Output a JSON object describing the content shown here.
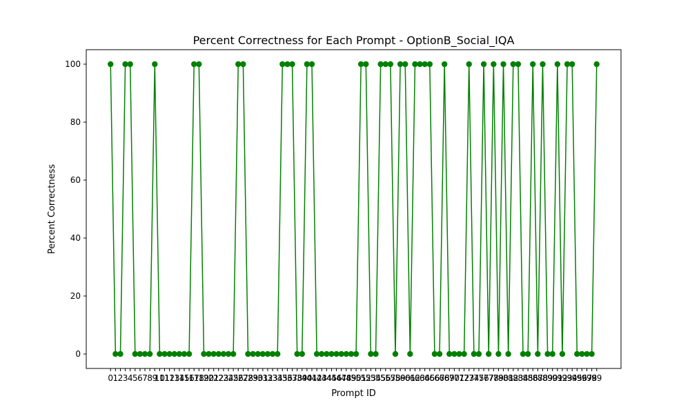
{
  "chart_data": {
    "type": "line",
    "title": "Percent Correctness for Each Prompt - OptionB_Social_IQA",
    "xlabel": "Prompt ID",
    "ylabel": "Percent Correctness",
    "x": [
      0,
      1,
      2,
      3,
      4,
      5,
      6,
      7,
      8,
      9,
      10,
      11,
      12,
      13,
      14,
      15,
      16,
      17,
      18,
      19,
      20,
      21,
      22,
      23,
      24,
      25,
      26,
      27,
      28,
      29,
      30,
      31,
      32,
      33,
      34,
      35,
      36,
      37,
      38,
      39,
      40,
      41,
      42,
      43,
      44,
      45,
      46,
      47,
      48,
      49,
      50,
      51,
      52,
      53,
      54,
      55,
      56,
      57,
      58,
      59,
      60,
      61,
      62,
      63,
      64,
      65,
      66,
      67,
      68,
      69,
      70,
      71,
      72,
      73,
      74,
      75,
      76,
      77,
      78,
      79,
      80,
      81,
      82,
      83,
      84,
      85,
      86,
      87,
      88,
      89,
      90,
      91,
      92,
      93,
      94,
      95,
      96,
      97,
      98,
      99
    ],
    "values": [
      100,
      0,
      0,
      100,
      100,
      0,
      0,
      0,
      0,
      100,
      0,
      0,
      0,
      0,
      0,
      0,
      0,
      100,
      100,
      0,
      0,
      0,
      0,
      0,
      0,
      0,
      100,
      100,
      0,
      0,
      0,
      0,
      0,
      0,
      0,
      100,
      100,
      100,
      0,
      0,
      100,
      100,
      0,
      0,
      0,
      0,
      0,
      0,
      0,
      0,
      0,
      100,
      100,
      0,
      0,
      100,
      100,
      100,
      0,
      100,
      100,
      0,
      100,
      100,
      100,
      100,
      0,
      0,
      100,
      0,
      0,
      0,
      0,
      100,
      0,
      0,
      100,
      0,
      100,
      0,
      100,
      0,
      100,
      100,
      0,
      0,
      100,
      0,
      100,
      0,
      0,
      100,
      0,
      100,
      100,
      0,
      0,
      0,
      0,
      100
    ],
    "yticks": [
      0,
      20,
      40,
      60,
      80,
      100
    ],
    "ylim": [
      -5,
      105
    ],
    "xlim": [
      -4.95,
      103.95
    ],
    "color": "#008000",
    "grid": false,
    "legend": "none"
  }
}
